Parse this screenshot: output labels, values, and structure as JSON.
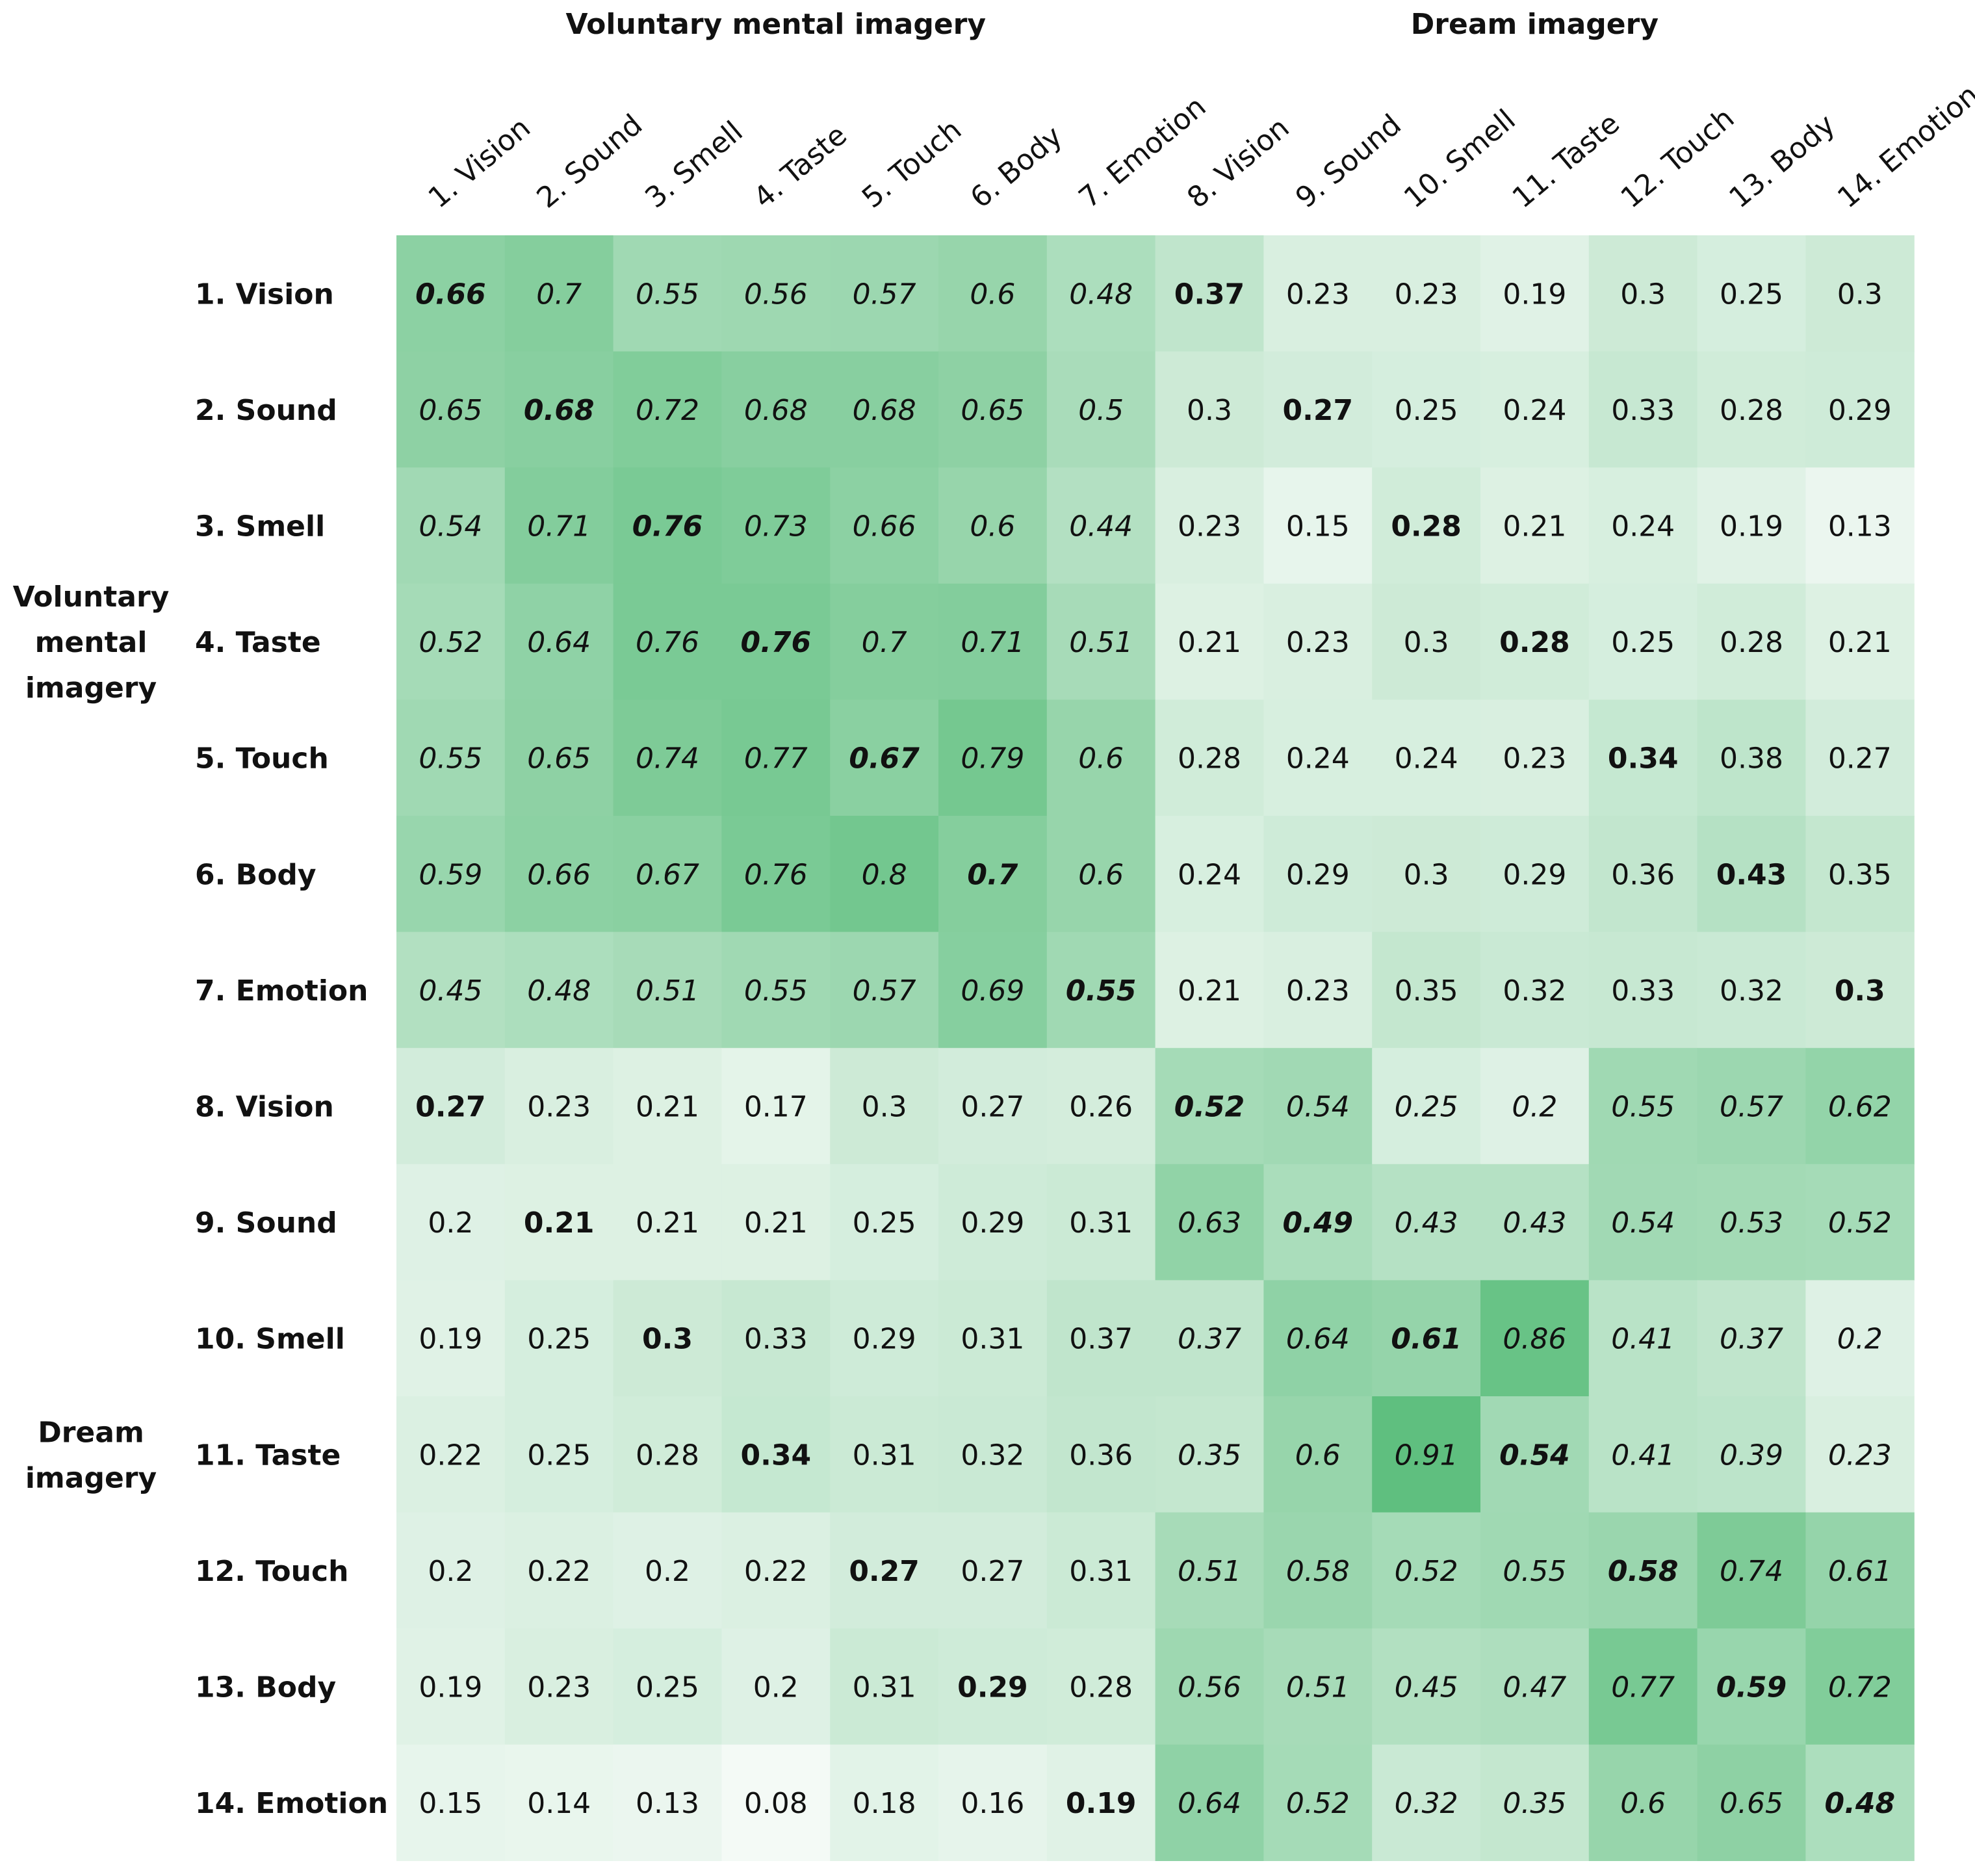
{
  "chart_data": {
    "type": "heatmap",
    "column_group_labels": [
      "Voluntary mental imagery",
      "Dream imagery"
    ],
    "row_group_labels": [
      [
        "Voluntary",
        "mental",
        "imagery"
      ],
      [
        "Dream",
        "imagery"
      ]
    ],
    "column_labels": [
      "1. Vision",
      "2. Sound",
      "3. Smell",
      "4. Taste",
      "5. Touch",
      "6. Body",
      "7. Emotion",
      "8. Vision",
      "9. Sound",
      "10. Smell",
      "11. Taste",
      "12. Touch",
      "13. Body",
      "14. Emotion"
    ],
    "row_labels": [
      "1. Vision",
      "2. Sound",
      "3. Smell",
      "4. Taste",
      "5. Touch",
      "6. Body",
      "7. Emotion",
      "8. Vision",
      "9. Sound",
      "10. Smell",
      "11. Taste",
      "12. Touch",
      "13. Body",
      "14. Emotion"
    ],
    "values": [
      [
        0.66,
        0.7,
        0.55,
        0.56,
        0.57,
        0.6,
        0.48,
        0.37,
        0.23,
        0.23,
        0.19,
        0.3,
        0.25,
        0.3
      ],
      [
        0.65,
        0.68,
        0.72,
        0.68,
        0.68,
        0.65,
        0.5,
        0.3,
        0.27,
        0.25,
        0.24,
        0.33,
        0.28,
        0.29
      ],
      [
        0.54,
        0.71,
        0.76,
        0.73,
        0.66,
        0.6,
        0.44,
        0.23,
        0.15,
        0.28,
        0.21,
        0.24,
        0.19,
        0.13
      ],
      [
        0.52,
        0.64,
        0.76,
        0.76,
        0.7,
        0.71,
        0.51,
        0.21,
        0.23,
        0.3,
        0.28,
        0.25,
        0.28,
        0.21
      ],
      [
        0.55,
        0.65,
        0.74,
        0.77,
        0.67,
        0.79,
        0.6,
        0.28,
        0.24,
        0.24,
        0.23,
        0.34,
        0.38,
        0.27
      ],
      [
        0.59,
        0.66,
        0.67,
        0.76,
        0.8,
        0.7,
        0.6,
        0.24,
        0.29,
        0.3,
        0.29,
        0.36,
        0.43,
        0.35
      ],
      [
        0.45,
        0.48,
        0.51,
        0.55,
        0.57,
        0.69,
        0.55,
        0.21,
        0.23,
        0.35,
        0.32,
        0.33,
        0.32,
        0.3
      ],
      [
        0.27,
        0.23,
        0.21,
        0.17,
        0.3,
        0.27,
        0.26,
        0.52,
        0.54,
        0.25,
        0.2,
        0.55,
        0.57,
        0.62
      ],
      [
        0.2,
        0.21,
        0.21,
        0.21,
        0.25,
        0.29,
        0.31,
        0.63,
        0.49,
        0.43,
        0.43,
        0.54,
        0.53,
        0.52
      ],
      [
        0.19,
        0.25,
        0.3,
        0.33,
        0.29,
        0.31,
        0.37,
        0.37,
        0.64,
        0.61,
        0.86,
        0.41,
        0.37,
        0.2
      ],
      [
        0.22,
        0.25,
        0.28,
        0.34,
        0.31,
        0.32,
        0.36,
        0.35,
        0.6,
        0.91,
        0.54,
        0.41,
        0.39,
        0.23
      ],
      [
        0.2,
        0.22,
        0.2,
        0.22,
        0.27,
        0.27,
        0.31,
        0.51,
        0.58,
        0.52,
        0.55,
        0.58,
        0.74,
        0.61
      ],
      [
        0.19,
        0.23,
        0.25,
        0.2,
        0.31,
        0.29,
        0.28,
        0.56,
        0.51,
        0.45,
        0.47,
        0.77,
        0.59,
        0.72
      ],
      [
        0.15,
        0.14,
        0.13,
        0.08,
        0.18,
        0.16,
        0.19,
        0.64,
        0.52,
        0.32,
        0.35,
        0.6,
        0.65,
        0.48
      ]
    ],
    "italic_cells": "values within the same imagery block (voluntary×voluntary, dream×dream) are italic",
    "bold_cells": "diagonal values and same-modality cross-block values are bold",
    "color_scale": {
      "low": "#f4faf6",
      "high": "#5fbf7f"
    },
    "grid": false,
    "legend": "none"
  }
}
